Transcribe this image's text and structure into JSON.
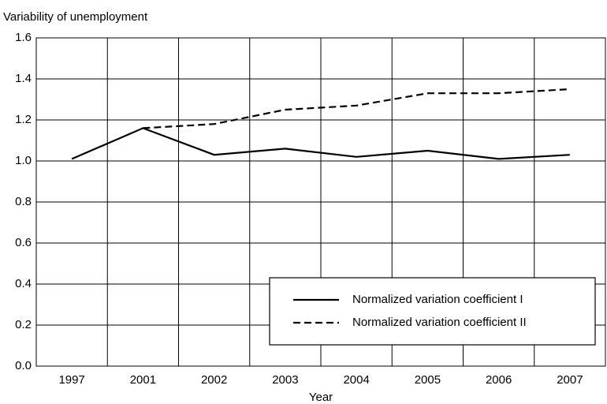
{
  "chart_data": {
    "type": "line",
    "title": "Variability of unemployment",
    "x_label": "Year",
    "categories": [
      "1997",
      "2001",
      "2002",
      "2003",
      "2004",
      "2005",
      "2006",
      "2007"
    ],
    "series": [
      {
        "name": "Normalized variation coefficient I",
        "color": "#000000",
        "dash": "solid",
        "values": [
          1.01,
          1.16,
          1.03,
          1.06,
          1.02,
          1.05,
          1.01,
          1.03
        ]
      },
      {
        "name": "Normalized variation coefficient II",
        "color": "#000000",
        "dash": "dashed",
        "values": [
          null,
          1.16,
          1.18,
          1.25,
          1.27,
          1.33,
          1.33,
          1.35
        ]
      }
    ],
    "ylim": [
      0,
      1.6
    ],
    "yticks": [
      {
        "value": 0,
        "label": "0.0"
      },
      0.2,
      0.4,
      0.6,
      0.8,
      {
        "value": 1,
        "label": "1.0"
      },
      1.2,
      1.4,
      1.6
    ],
    "grid": true,
    "legend": "lower right"
  }
}
